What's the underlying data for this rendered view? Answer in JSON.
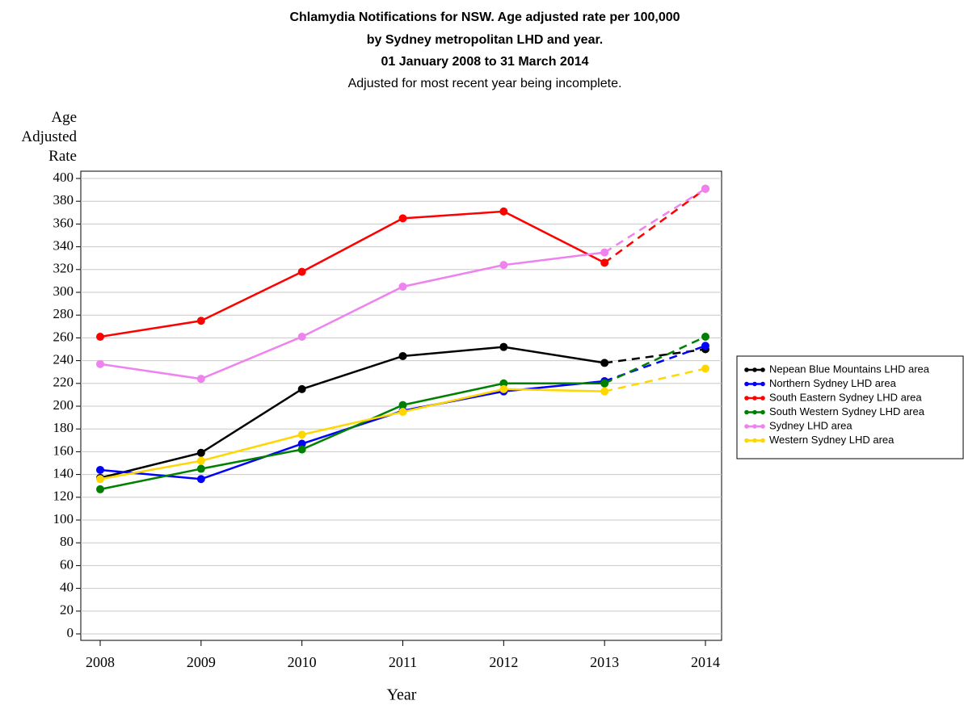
{
  "chart_data": {
    "type": "line",
    "title_lines": [
      "Chlamydia Notifications for NSW. Age adjusted rate per 100,000",
      "by Sydney metropolitan LHD and year.",
      "01 January 2008 to 31 March 2014"
    ],
    "subtitle": "Adjusted for most recent year being incomplete.",
    "y_label": "Age Adjusted Rate",
    "x_label": "Year",
    "categories": [
      "2008",
      "2009",
      "2010",
      "2011",
      "2012",
      "2013",
      "2014"
    ],
    "ylim": [
      0,
      400
    ],
    "yticks": [
      0,
      20,
      40,
      60,
      80,
      100,
      120,
      140,
      160,
      180,
      200,
      220,
      240,
      260,
      280,
      300,
      320,
      340,
      360,
      380,
      400
    ],
    "grid": true,
    "legend": "right",
    "series": [
      {
        "name": "Nepean Blue Mountains LHD area",
        "color": "#000000",
        "values": [
          137,
          159,
          215,
          244,
          252,
          238,
          250
        ]
      },
      {
        "name": "Northern Sydney LHD area",
        "color": "#0000ff",
        "values": [
          144,
          136,
          167,
          196,
          213,
          222,
          253
        ]
      },
      {
        "name": "South Eastern Sydney LHD area",
        "color": "#ff0000",
        "values": [
          261,
          275,
          318,
          365,
          371,
          326,
          391
        ]
      },
      {
        "name": "South Western Sydney LHD area",
        "color": "#008000",
        "values": [
          127,
          145,
          162,
          201,
          220,
          220,
          261
        ]
      },
      {
        "name": "Sydney LHD area",
        "color": "#ee82ee",
        "values": [
          237,
          224,
          261,
          305,
          324,
          335,
          391
        ]
      },
      {
        "name": "Western Sydney LHD area",
        "color": "#ffd700",
        "values": [
          136,
          152,
          175,
          195,
          215,
          213,
          233
        ]
      }
    ]
  }
}
